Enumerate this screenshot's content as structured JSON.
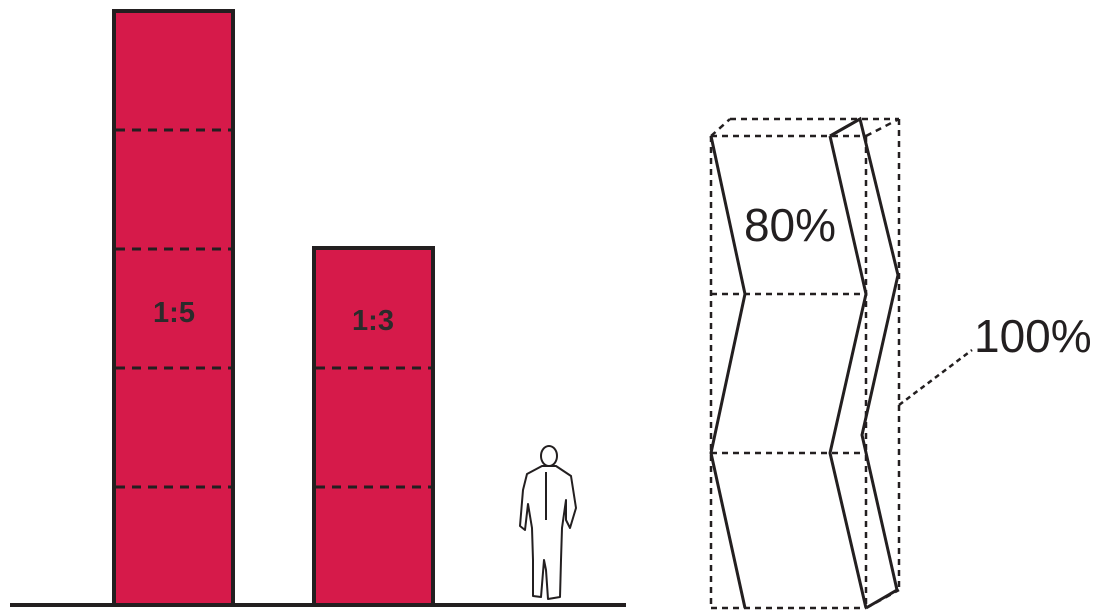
{
  "colors": {
    "building_fill": "#d61a4a",
    "outline": "#231f20",
    "background": "#ffffff"
  },
  "buildings": [
    {
      "ratio_label": "1:5",
      "floors": 5
    },
    {
      "ratio_label": "1:3",
      "floors": 3
    }
  ],
  "figure_icon": "standing-person-icon",
  "folded_volume": {
    "inner_label": "80%",
    "outer_label": "100%"
  }
}
